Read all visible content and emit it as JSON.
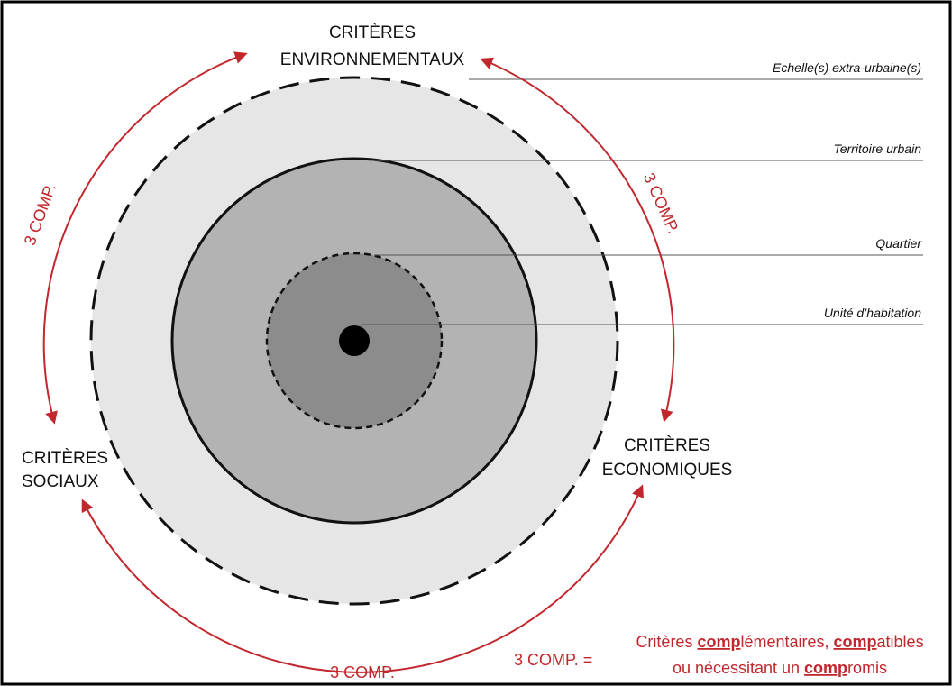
{
  "criteria": {
    "environmental": [
      "CRITÈRES",
      "ENVIRONNEMENTAUX"
    ],
    "social": [
      "CRITÈRES",
      "SOCIAUX"
    ],
    "economic": [
      "CRITÈRES",
      "ECONOMIQUES"
    ]
  },
  "scales": [
    "Echelle(s) extra-urbaine(s)",
    "Territoire urbain",
    "Quartier",
    "Unité d’habitation"
  ],
  "arc_labels": [
    "3 COMP.",
    "3 COMP.",
    "3 COMP."
  ],
  "legend": {
    "key": "3 COMP. =",
    "line1": [
      "Critères ",
      "comp",
      "lémentaires, ",
      "comp",
      "atibles"
    ],
    "line2": [
      "ou nécessitant un ",
      "comp",
      "romis"
    ]
  }
}
